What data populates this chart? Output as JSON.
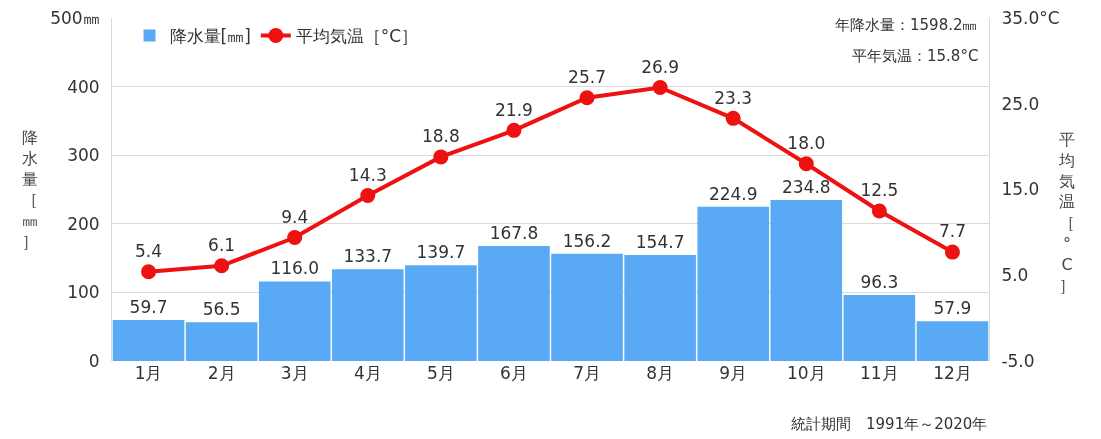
{
  "chart_data": {
    "type": "bar",
    "ylabel": "降水量［㎜］",
    "y2label": "平均気温［°C］",
    "categories": [
      "1月",
      "2月",
      "3月",
      "4月",
      "5月",
      "6月",
      "7月",
      "8月",
      "9月",
      "10月",
      "11月",
      "12月"
    ],
    "series": [
      {
        "name": "降水量[㎜]",
        "color": "#5aa9f5",
        "values": [
          59.7,
          56.5,
          116.0,
          133.7,
          139.7,
          167.8,
          156.2,
          154.7,
          224.9,
          234.8,
          96.3,
          57.9
        ],
        "value_labels": [
          "59.7",
          "56.5",
          "116.0",
          "133.7",
          "139.7",
          "167.8",
          "156.2",
          "154.7",
          "224.9",
          "234.8",
          "96.3",
          "57.9"
        ]
      },
      {
        "name": "平均気温［°C］",
        "type": "line",
        "axis": "y2",
        "color": "#ee1111",
        "values": [
          5.4,
          6.1,
          9.4,
          14.3,
          18.8,
          21.9,
          25.7,
          26.9,
          23.3,
          18.0,
          12.5,
          7.7
        ],
        "value_labels": [
          "5.4",
          "6.1",
          "9.4",
          "14.3",
          "18.8",
          "21.9",
          "25.7",
          "26.9",
          "23.3",
          "18.0",
          "12.5",
          "7.7"
        ]
      }
    ],
    "ylim": [
      0,
      500
    ],
    "yticks": [
      0,
      100,
      200,
      300,
      400,
      {
        "value": 500,
        "label": "500㎜"
      }
    ],
    "y2lim": [
      -5,
      35
    ],
    "y2ticks": [
      {
        "value": -5,
        "label": "-5.0"
      },
      {
        "value": 5,
        "label": "5.0"
      },
      {
        "value": 15,
        "label": "15.0"
      },
      {
        "value": 25,
        "label": "25.0"
      },
      {
        "value": 35,
        "label": "35.0°C"
      }
    ],
    "grid": "y",
    "legend": "top left",
    "marker": "circle",
    "line_style": "solid",
    "annotations": [
      "年降水量：1598.2㎜",
      "平年気温：15.8°C",
      "統計期間　1991年～2020年"
    ]
  }
}
